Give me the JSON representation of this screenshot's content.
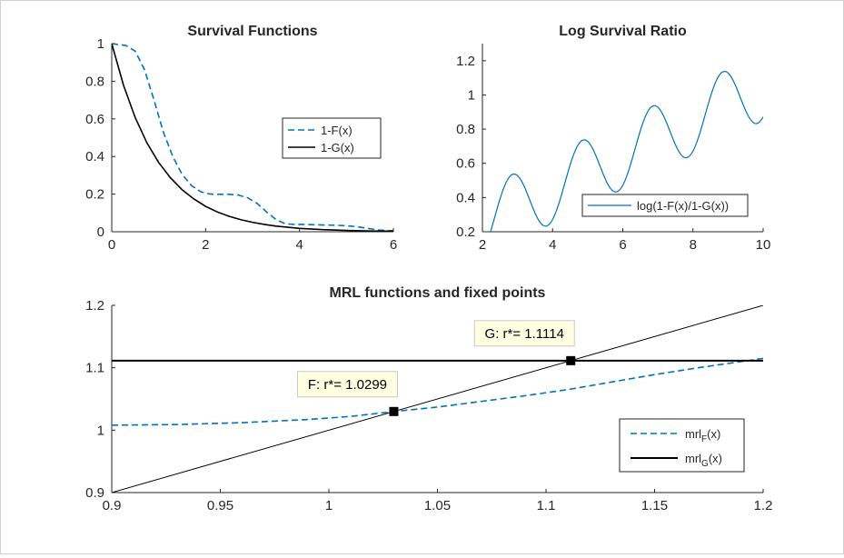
{
  "colors": {
    "f_curve": "#0072bd",
    "g_curve": "#000000",
    "log_curve": "#0072bd",
    "axis": "#262626",
    "annotation_bg": "#ffffe1"
  },
  "chart_data": [
    {
      "id": "survival",
      "type": "line",
      "title": "Survival Functions",
      "xlim": [
        0,
        6
      ],
      "ylim": [
        0,
        1
      ],
      "xticks": [
        "0",
        "2",
        "4",
        "6"
      ],
      "yticks": [
        "0",
        "0.2",
        "0.4",
        "0.6",
        "0.8",
        "1"
      ],
      "legend": {
        "location": "center-right",
        "entries": [
          "1-F(x)",
          "1-G(x)"
        ]
      },
      "series": [
        {
          "name": "1-F(x)",
          "style": "dashed",
          "x": [
            0,
            0.3,
            0.5,
            0.7,
            0.9,
            1.1,
            1.3,
            1.5,
            1.7,
            1.9,
            2.1,
            2.3,
            2.5,
            2.7,
            2.9,
            3.1,
            3.3,
            3.5,
            3.7,
            3.9,
            4.1,
            4.3,
            4.5,
            4.7,
            4.9,
            5.1,
            5.3,
            5.5,
            5.7,
            6.0
          ],
          "y": [
            1.0,
            0.99,
            0.96,
            0.86,
            0.7,
            0.53,
            0.4,
            0.305,
            0.245,
            0.212,
            0.2,
            0.199,
            0.199,
            0.195,
            0.18,
            0.15,
            0.105,
            0.065,
            0.042,
            0.039,
            0.039,
            0.037,
            0.036,
            0.035,
            0.033,
            0.03,
            0.024,
            0.016,
            0.009,
            0.005
          ]
        },
        {
          "name": "1-G(x)",
          "style": "solid",
          "x": [
            0,
            0.25,
            0.5,
            0.75,
            1.0,
            1.25,
            1.5,
            1.75,
            2.0,
            2.25,
            2.5,
            2.75,
            3.0,
            3.25,
            3.5,
            3.75,
            4.0,
            4.5,
            5.0,
            5.5,
            6.0
          ],
          "y": [
            1.0,
            0.779,
            0.607,
            0.472,
            0.368,
            0.287,
            0.223,
            0.174,
            0.135,
            0.105,
            0.082,
            0.064,
            0.05,
            0.039,
            0.03,
            0.024,
            0.018,
            0.011,
            0.007,
            0.004,
            0.0025
          ]
        }
      ]
    },
    {
      "id": "logratio",
      "type": "line",
      "title": "Log Survival Ratio",
      "xlim": [
        2,
        10
      ],
      "ylim": [
        0.2,
        1.3
      ],
      "xticks": [
        "2",
        "4",
        "6",
        "8",
        "10"
      ],
      "yticks": [
        "0.2",
        "0.4",
        "0.6",
        "0.8",
        "1",
        "1.2"
      ],
      "legend": {
        "location": "bottom-right",
        "entries": [
          "log(1-F(x)/1-G(x))"
        ]
      },
      "series": [
        {
          "name": "log(1-F(x)/1-G(x))",
          "formula": "0.1*x + 0.2*sin(3.1416*(x-2.35)) + 0.05",
          "x_range": [
            2,
            10
          ]
        }
      ]
    },
    {
      "id": "mrl",
      "type": "line",
      "title": "MRL functions and fixed points",
      "xlim": [
        0.9,
        1.2
      ],
      "ylim": [
        0.9,
        1.2
      ],
      "xticks": [
        "0.9",
        "0.95",
        "1",
        "1.05",
        "1.1",
        "1.15",
        "1.2"
      ],
      "yticks": [
        "0.9",
        "1",
        "1.1",
        "1.2"
      ],
      "legend": {
        "location": "bottom-right",
        "entries": [
          {
            "main": "mrl",
            "sub": "F",
            "tail": "(x)"
          },
          {
            "main": "mrl",
            "sub": "G",
            "tail": "(x)"
          }
        ]
      },
      "series": [
        {
          "name": "mrl_F(x)",
          "style": "dashed",
          "x": [
            0.9,
            0.93,
            0.96,
            0.99,
            1.01,
            1.03,
            1.05,
            1.07,
            1.09,
            1.11,
            1.13,
            1.15,
            1.17,
            1.2
          ],
          "y": [
            1.008,
            1.009,
            1.012,
            1.017,
            1.022,
            1.0299,
            1.037,
            1.046,
            1.055,
            1.065,
            1.077,
            1.089,
            1.1,
            1.115
          ]
        },
        {
          "name": "mrl_G(x)",
          "style": "solid",
          "x": [
            0.9,
            1.2
          ],
          "y": [
            1.1114,
            1.1114
          ]
        },
        {
          "name": "identity",
          "style": "thin",
          "x": [
            0.9,
            1.2
          ],
          "y": [
            0.9,
            1.2
          ]
        }
      ],
      "points": [
        {
          "label": "F: r*= 1.0299",
          "x": 1.0299,
          "y": 1.0299
        },
        {
          "label": "G: r*= 1.1114",
          "x": 1.1114,
          "y": 1.1114
        }
      ]
    }
  ]
}
